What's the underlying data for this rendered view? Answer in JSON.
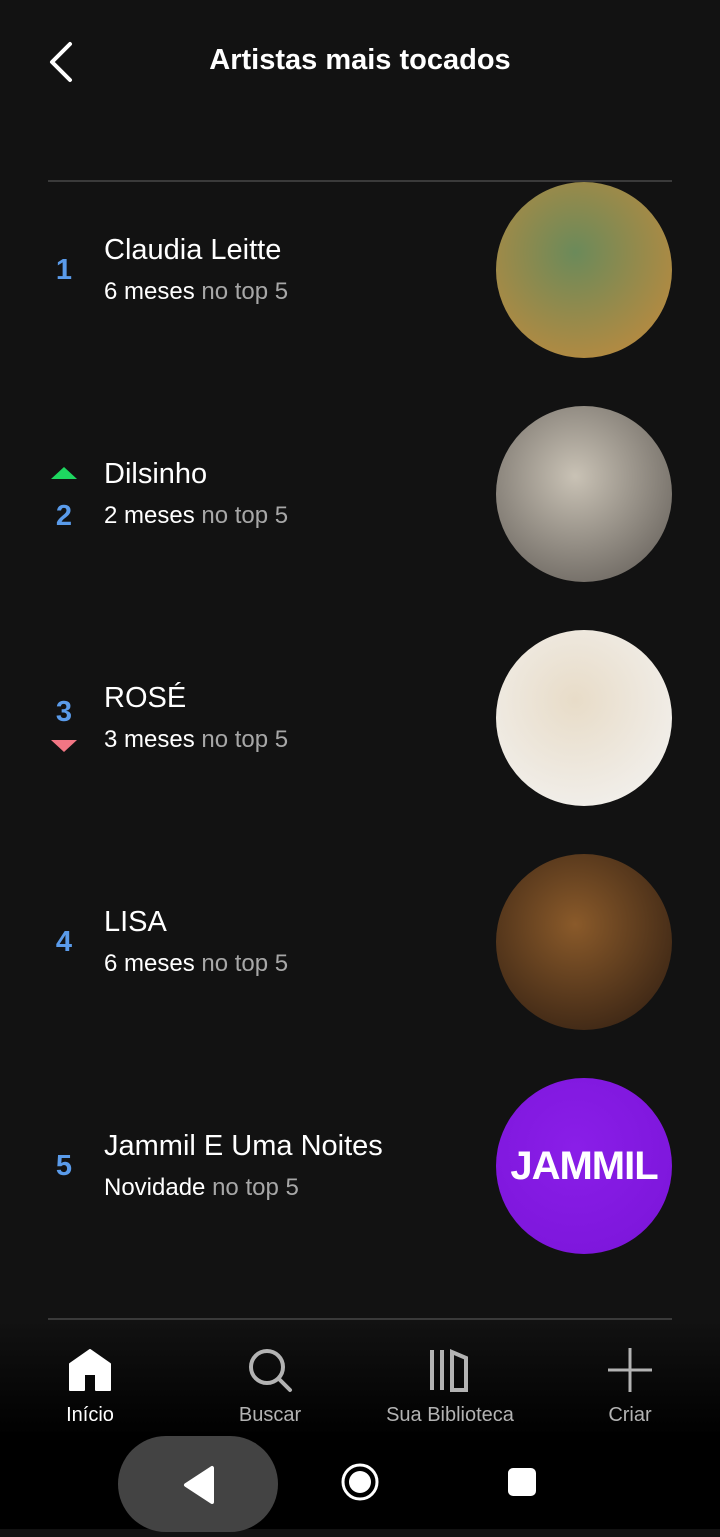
{
  "header": {
    "title": "Artistas mais tocados",
    "back_icon": "chevron-left-icon"
  },
  "artists": [
    {
      "rank": "1",
      "name": "Claudia Leitte",
      "highlight": "6 meses",
      "suffix": "no top 5",
      "trend": "none",
      "avatar_colors": [
        "#6b8a5a",
        "#c88a3a"
      ]
    },
    {
      "rank": "2",
      "name": "Dilsinho",
      "highlight": "2 meses",
      "suffix": "no top 5",
      "trend": "up",
      "avatar_colors": [
        "#c9c2b5",
        "#5a5550"
      ]
    },
    {
      "rank": "3",
      "name": "ROSÉ",
      "highlight": "3 meses",
      "suffix": "no top 5",
      "trend": "down",
      "avatar_colors": [
        "#e8dcc8",
        "#f4f4f4"
      ]
    },
    {
      "rank": "4",
      "name": "LISA",
      "highlight": "6 meses",
      "suffix": "no top 5",
      "trend": "none",
      "avatar_colors": [
        "#8a5a2a",
        "#2a1a10"
      ]
    },
    {
      "rank": "5",
      "name": "Jammil E Uma Noites",
      "highlight": "Novidade",
      "suffix": "no top 5",
      "trend": "none",
      "avatar_colors": [
        "#8a1ee8",
        "#7a14d8"
      ],
      "avatar_logo": "JAMMIL"
    }
  ],
  "colors": {
    "rank": "#5a9bea",
    "up": "#1ed760",
    "down": "#f27684",
    "background": "#121212"
  },
  "nav": {
    "items": [
      {
        "label": "Início",
        "icon": "home-icon",
        "active": true
      },
      {
        "label": "Buscar",
        "icon": "search-icon"
      },
      {
        "label": "Sua Biblioteca",
        "icon": "library-icon"
      },
      {
        "label": "Criar",
        "icon": "plus-icon"
      }
    ]
  }
}
